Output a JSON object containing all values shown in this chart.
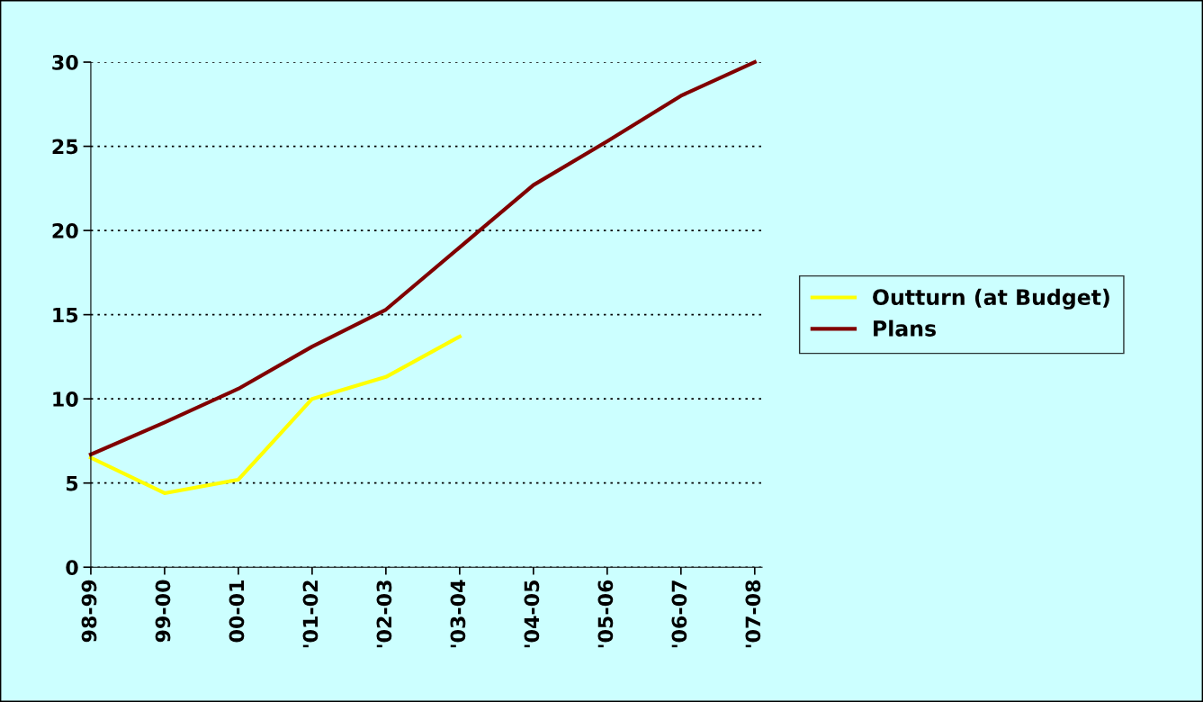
{
  "chart_data": {
    "type": "line",
    "categories": [
      "98-99",
      "99-00",
      "00-01",
      "'01-02",
      "'02-03",
      "'03-04",
      "'04-05",
      "'05-06",
      "'06-07",
      "'07-08"
    ],
    "series": [
      {
        "name": "Outturn (at Budget)",
        "color": "#ffff00",
        "values": [
          6.5,
          4.4,
          5.2,
          10.0,
          11.3,
          13.7,
          null,
          null,
          null,
          null
        ]
      },
      {
        "name": "Plans",
        "color": "#800000",
        "values": [
          6.7,
          8.6,
          10.6,
          13.1,
          15.3,
          19.0,
          22.7,
          25.3,
          28.0,
          30.0
        ]
      }
    ],
    "ylim": [
      0,
      30
    ],
    "yticks": [
      0,
      5,
      10,
      15,
      20,
      25,
      30
    ],
    "grid": "y",
    "legend": "right",
    "marker": "none",
    "line_style": "solid"
  }
}
